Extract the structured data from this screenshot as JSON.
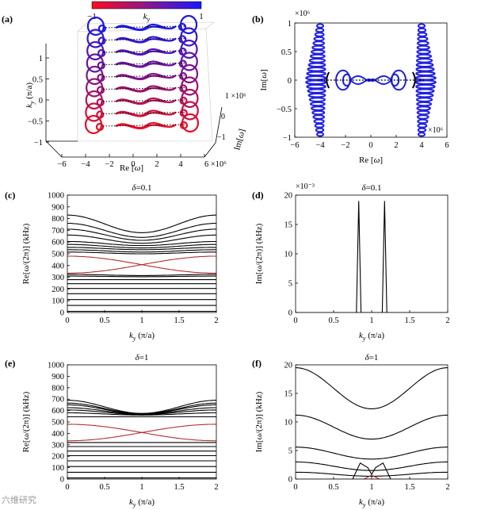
{
  "colors": {
    "red": "#e0102a",
    "blue": "#2020e0",
    "dark_red": "#b03030",
    "black": "#000000"
  },
  "colorbar": {
    "label": "ky",
    "min_label": "−1",
    "max_label": "1"
  },
  "panels": {
    "a": {
      "letter": "(a)",
      "xlabel": "Re [ω]",
      "ylabel": "ky (π/a)",
      "zlabel": "Im[ω]",
      "x_ticks": [
        "−6",
        "−4",
        "−2",
        "0",
        "2",
        "4",
        "6 ×10⁶"
      ],
      "y_ticks": [
        "1",
        "0.5",
        "0",
        "−0.5",
        "−1"
      ],
      "z_ticks": [
        "1 ×10⁶",
        "0",
        "−1"
      ]
    },
    "b": {
      "letter": "(b)",
      "xlabel": "Re [ω]",
      "ylabel": "Im[ω]",
      "exp_top": "×10⁶",
      "exp_right": "×10⁶",
      "x_ticks": [
        "−6",
        "−4",
        "−2",
        "0",
        "2",
        "4",
        "6"
      ],
      "y_ticks": [
        "1",
        "0.5",
        "0",
        "−0.5",
        "−1"
      ]
    }
  },
  "chart_data": [
    {
      "id": "c",
      "letter": "(c)",
      "type": "line",
      "title": "δ=0.1",
      "xlabel": "ky (π/a)",
      "ylabel": "Re[ω/(2π)] (kHz)",
      "xlim": [
        0,
        2
      ],
      "ylim": [
        0,
        1000
      ],
      "x_ticks": [
        "0",
        "0.5",
        "1",
        "1.5",
        "2"
      ],
      "y_ticks": [
        "0",
        "100",
        "200",
        "300",
        "400",
        "500",
        "600",
        "700",
        "800",
        "900",
        "1000"
      ],
      "series": [
        {
          "name": "band1",
          "color": "black",
          "endpoint_values": [
            10
          ],
          "center_value": 10,
          "curvature": "flat"
        },
        {
          "name": "band2",
          "color": "black",
          "endpoint_values": [
            60
          ],
          "center_value": 60
        },
        {
          "name": "band3",
          "color": "black",
          "endpoint_values": [
            110
          ],
          "center_value": 110
        },
        {
          "name": "band4",
          "color": "black",
          "endpoint_values": [
            160
          ],
          "center_value": 160
        },
        {
          "name": "band5",
          "color": "black",
          "endpoint_values": [
            205
          ],
          "center_value": 205
        },
        {
          "name": "band6",
          "color": "black",
          "endpoint_values": [
            245
          ],
          "center_value": 245
        },
        {
          "name": "band7",
          "color": "black",
          "endpoint_values": [
            280
          ],
          "center_value": 280
        },
        {
          "name": "band8",
          "color": "black",
          "endpoint_values": [
            310
          ],
          "center_value": 305
        },
        {
          "name": "band9",
          "color": "black",
          "endpoint_values": [
            325
          ],
          "center_value": 315
        },
        {
          "name": "red_cross_1",
          "color": "red",
          "endpoint_values": [
            335
          ],
          "center_value": 410,
          "end_value": 480
        },
        {
          "name": "red_cross_2",
          "color": "red",
          "endpoint_values": [
            480
          ],
          "center_value": 410,
          "end_value": 335
        },
        {
          "name": "band10",
          "color": "black",
          "endpoint_values": [
            515
          ],
          "center_value": 500
        },
        {
          "name": "band11",
          "color": "black",
          "endpoint_values": [
            535
          ],
          "center_value": 515
        },
        {
          "name": "band12",
          "color": "black",
          "endpoint_values": [
            555
          ],
          "center_value": 535
        },
        {
          "name": "band13",
          "color": "black",
          "endpoint_values": [
            580
          ],
          "center_value": 550
        },
        {
          "name": "band14",
          "color": "black",
          "endpoint_values": [
            605
          ],
          "center_value": 570
        },
        {
          "name": "band15",
          "color": "black",
          "endpoint_values": [
            660
          ],
          "center_value": 590
        },
        {
          "name": "band16",
          "color": "black",
          "endpoint_values": [
            710
          ],
          "center_value": 615
        },
        {
          "name": "band17",
          "color": "black",
          "endpoint_values": [
            760
          ],
          "center_value": 640
        },
        {
          "name": "band18",
          "color": "black",
          "endpoint_values": [
            830
          ],
          "center_value": 680
        }
      ]
    },
    {
      "id": "d",
      "letter": "(d)",
      "type": "line",
      "title": "δ=0.1",
      "xlabel": "ky (π/a)",
      "ylabel": "Im[ω/(2π)] (kHz)",
      "exponent": "×10⁻³",
      "xlim": [
        0,
        2
      ],
      "ylim": [
        0,
        20
      ],
      "x_ticks": [
        "0",
        "0.5",
        "1",
        "1.5",
        "2"
      ],
      "y_ticks": [
        "0",
        "5",
        "10",
        "15",
        "20"
      ],
      "series": [
        {
          "name": "baseline",
          "color": "red",
          "x": [
            0,
            2
          ],
          "y": [
            0,
            0
          ]
        },
        {
          "name": "spike_left",
          "color": "black",
          "x": [
            0.8,
            0.83,
            0.86
          ],
          "y": [
            0,
            19,
            0
          ]
        },
        {
          "name": "spike_right",
          "color": "black",
          "x": [
            1.14,
            1.17,
            1.2
          ],
          "y": [
            0,
            19,
            0
          ]
        }
      ]
    },
    {
      "id": "e",
      "letter": "(e)",
      "type": "line",
      "title": "δ=1",
      "xlabel": "ky (π/a)",
      "ylabel": "Re[ω/(2π)] (kHz)",
      "xlim": [
        0,
        2
      ],
      "ylim": [
        0,
        1000
      ],
      "x_ticks": [
        "0",
        "0.5",
        "1",
        "1.5",
        "2"
      ],
      "y_ticks": [
        "0",
        "100",
        "200",
        "300",
        "400",
        "500",
        "600",
        "700",
        "800",
        "900",
        "1000"
      ],
      "series": [
        {
          "name": "band1",
          "color": "black",
          "endpoint_values": [
            10
          ],
          "center_value": 10
        },
        {
          "name": "band2",
          "color": "black",
          "endpoint_values": [
            60
          ],
          "center_value": 60
        },
        {
          "name": "band3",
          "color": "black",
          "endpoint_values": [
            110
          ],
          "center_value": 110
        },
        {
          "name": "band4",
          "color": "black",
          "endpoint_values": [
            160
          ],
          "center_value": 160
        },
        {
          "name": "band5",
          "color": "black",
          "endpoint_values": [
            205
          ],
          "center_value": 205
        },
        {
          "name": "band6",
          "color": "black",
          "endpoint_values": [
            245
          ],
          "center_value": 245
        },
        {
          "name": "band7",
          "color": "black",
          "endpoint_values": [
            285
          ],
          "center_value": 285
        },
        {
          "name": "band8",
          "color": "black",
          "endpoint_values": [
            320
          ],
          "center_value": 320
        },
        {
          "name": "red_cross_1",
          "color": "red",
          "endpoint_values": [
            335
          ],
          "center_value": 410,
          "end_value": 480
        },
        {
          "name": "red_cross_2",
          "color": "red",
          "endpoint_values": [
            480
          ],
          "center_value": 410,
          "end_value": 335
        },
        {
          "name": "band9",
          "color": "black",
          "endpoint_values": [
            545
          ],
          "center_value": 545
        },
        {
          "name": "band10",
          "color": "black",
          "endpoint_values": [
            580
          ],
          "center_value": 560
        },
        {
          "name": "band11",
          "color": "black",
          "endpoint_values": [
            605
          ],
          "center_value": 565
        },
        {
          "name": "band12",
          "color": "black",
          "endpoint_values": [
            625
          ],
          "center_value": 568
        },
        {
          "name": "band13",
          "color": "black",
          "endpoint_values": [
            650
          ],
          "center_value": 570
        },
        {
          "name": "band14",
          "color": "black",
          "endpoint_values": [
            665
          ],
          "center_value": 572
        },
        {
          "name": "band15",
          "color": "black",
          "endpoint_values": [
            690
          ],
          "center_value": 575
        }
      ]
    },
    {
      "id": "f",
      "letter": "(f)",
      "type": "line",
      "title": "δ=1",
      "xlabel": "ky (π/a)",
      "ylabel": "Im[ω/(2π)] (kHz)",
      "xlim": [
        0,
        2
      ],
      "ylim": [
        0,
        20
      ],
      "x_ticks": [
        "0",
        "0.5",
        "1",
        "1.5",
        "2"
      ],
      "y_ticks": [
        "0",
        "5",
        "10",
        "15",
        "20"
      ],
      "series": [
        {
          "name": "band_top",
          "color": "black",
          "endpoint_values": [
            19.5
          ],
          "center_value": 12.3
        },
        {
          "name": "band_2",
          "color": "black",
          "endpoint_values": [
            11.2
          ],
          "center_value": 7.0
        },
        {
          "name": "band_3",
          "color": "black",
          "endpoint_values": [
            5.6
          ],
          "center_value": 3.5
        },
        {
          "name": "band_4",
          "color": "black",
          "endpoint_values": [
            3.0
          ],
          "center_value": 1.5
        },
        {
          "name": "band_5",
          "color": "black",
          "endpoint_values": [
            1.2
          ],
          "center_value": 0.5
        },
        {
          "name": "arch_left",
          "color": "black",
          "x": [
            0.75,
            0.85,
            0.95,
            1.0
          ],
          "y": [
            0,
            2.8,
            2.0,
            0.8
          ]
        },
        {
          "name": "arch_right",
          "color": "black",
          "x": [
            1.0,
            1.05,
            1.15,
            1.25
          ],
          "y": [
            0.8,
            2.0,
            2.8,
            0
          ]
        },
        {
          "name": "baseline",
          "color": "red",
          "x": [
            0,
            2
          ],
          "y": [
            0,
            0
          ]
        },
        {
          "name": "red_bump",
          "color": "red",
          "x": [
            0.9,
            1.0,
            1.1
          ],
          "y": [
            0,
            0.7,
            0
          ]
        }
      ]
    }
  ],
  "watermark": "六维研究"
}
